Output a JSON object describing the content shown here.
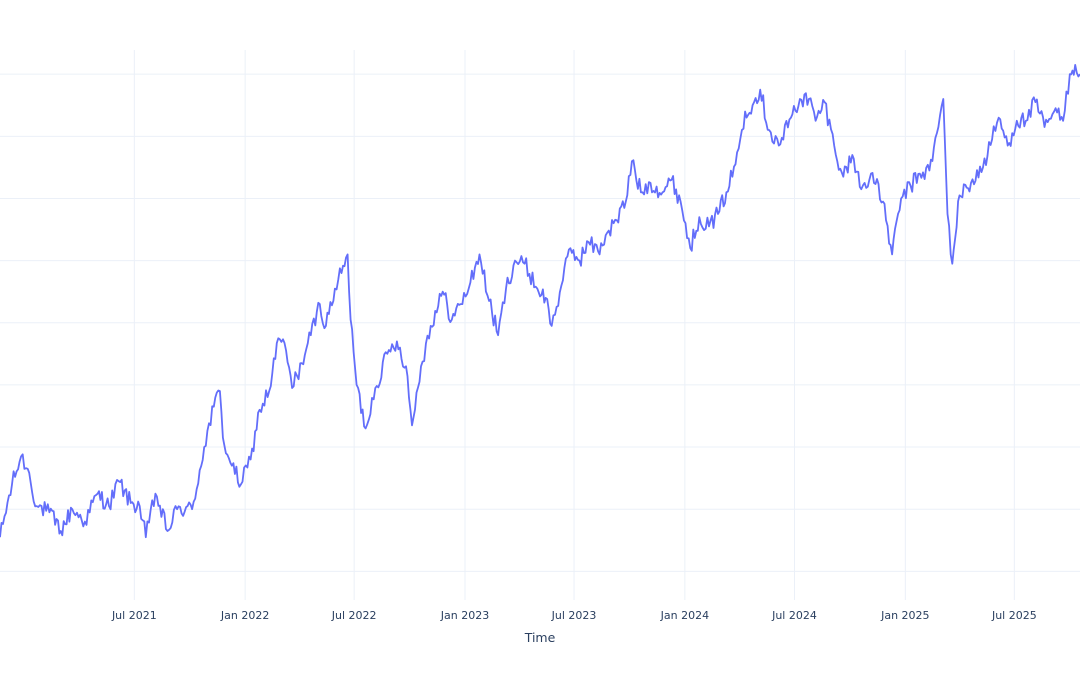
{
  "chart_data": {
    "type": "line",
    "title": "",
    "xlabel": "Time",
    "ylabel": "",
    "x_range": [
      "2020-11-20",
      "2025-10-18"
    ],
    "y_range": [
      -0.3,
      8.55
    ],
    "grid": true,
    "legend": "none",
    "x_ticks": [
      {
        "date": "2021-07-01",
        "label": "Jul 2021"
      },
      {
        "date": "2022-01-01",
        "label": "Jan 2022"
      },
      {
        "date": "2022-07-01",
        "label": "Jul 2022"
      },
      {
        "date": "2023-01-01",
        "label": "Jan 2023"
      },
      {
        "date": "2023-07-01",
        "label": "Jul 2023"
      },
      {
        "date": "2024-01-01",
        "label": "Jan 2024"
      },
      {
        "date": "2024-07-01",
        "label": "Jul 2024"
      },
      {
        "date": "2025-01-01",
        "label": "Jan 2025"
      },
      {
        "date": "2025-07-01",
        "label": "Jul 2025"
      }
    ],
    "y_gridlines": [
      0,
      1,
      2,
      3,
      4,
      5,
      6,
      7,
      8
    ],
    "series": [
      {
        "color": "#636efa",
        "points": [
          [
            "2020-11-20",
            0.55
          ],
          [
            "2020-12-10",
            1.4
          ],
          [
            "2020-12-25",
            1.85
          ],
          [
            "2021-01-05",
            1.65
          ],
          [
            "2021-01-20",
            1.05
          ],
          [
            "2021-02-10",
            0.95
          ],
          [
            "2021-03-01",
            0.65
          ],
          [
            "2021-03-20",
            1.0
          ],
          [
            "2021-04-10",
            0.8
          ],
          [
            "2021-05-01",
            1.25
          ],
          [
            "2021-05-20",
            1.05
          ],
          [
            "2021-06-05",
            1.45
          ],
          [
            "2021-06-25",
            1.1
          ],
          [
            "2021-07-10",
            1.05
          ],
          [
            "2021-07-20",
            0.55
          ],
          [
            "2021-08-05",
            1.25
          ],
          [
            "2021-08-25",
            0.65
          ],
          [
            "2021-09-10",
            1.0
          ],
          [
            "2021-10-05",
            1.0
          ],
          [
            "2021-10-25",
            2.0
          ],
          [
            "2021-11-10",
            2.65
          ],
          [
            "2021-11-20",
            2.9
          ],
          [
            "2021-11-25",
            2.15
          ],
          [
            "2021-12-10",
            1.7
          ],
          [
            "2021-12-25",
            1.4
          ],
          [
            "2022-01-10",
            1.8
          ],
          [
            "2022-01-25",
            2.6
          ],
          [
            "2022-02-10",
            2.9
          ],
          [
            "2022-02-25",
            3.75
          ],
          [
            "2022-03-10",
            3.55
          ],
          [
            "2022-03-20",
            2.95
          ],
          [
            "2022-04-05",
            3.35
          ],
          [
            "2022-04-20",
            3.8
          ],
          [
            "2022-05-05",
            4.3
          ],
          [
            "2022-05-15",
            3.95
          ],
          [
            "2022-05-30",
            4.55
          ],
          [
            "2022-06-10",
            4.8
          ],
          [
            "2022-06-20",
            5.1
          ],
          [
            "2022-06-25",
            4.05
          ],
          [
            "2022-07-05",
            3.0
          ],
          [
            "2022-07-20",
            2.3
          ],
          [
            "2022-08-05",
            2.95
          ],
          [
            "2022-08-25",
            3.5
          ],
          [
            "2022-09-10",
            3.7
          ],
          [
            "2022-09-25",
            3.3
          ],
          [
            "2022-10-05",
            2.35
          ],
          [
            "2022-10-20",
            3.3
          ],
          [
            "2022-11-05",
            3.95
          ],
          [
            "2022-11-25",
            4.5
          ],
          [
            "2022-12-10",
            4.05
          ],
          [
            "2022-12-25",
            4.3
          ],
          [
            "2023-01-10",
            4.65
          ],
          [
            "2023-01-25",
            5.1
          ],
          [
            "2023-02-10",
            4.35
          ],
          [
            "2023-02-25",
            3.8
          ],
          [
            "2023-03-10",
            4.55
          ],
          [
            "2023-03-25",
            5.0
          ],
          [
            "2023-04-10",
            4.95
          ],
          [
            "2023-05-01",
            4.55
          ],
          [
            "2023-05-15",
            4.4
          ],
          [
            "2023-05-25",
            3.95
          ],
          [
            "2023-06-10",
            4.6
          ],
          [
            "2023-06-25",
            5.2
          ],
          [
            "2023-07-10",
            5.0
          ],
          [
            "2023-07-25",
            5.3
          ],
          [
            "2023-08-10",
            5.15
          ],
          [
            "2023-08-25",
            5.45
          ],
          [
            "2023-09-10",
            5.65
          ],
          [
            "2023-09-25",
            5.95
          ],
          [
            "2023-10-05",
            6.6
          ],
          [
            "2023-10-20",
            6.1
          ],
          [
            "2023-11-05",
            6.25
          ],
          [
            "2023-11-25",
            6.1
          ],
          [
            "2023-12-10",
            6.3
          ],
          [
            "2023-12-25",
            5.95
          ],
          [
            "2024-01-10",
            5.2
          ],
          [
            "2024-01-25",
            5.7
          ],
          [
            "2024-02-10",
            5.55
          ],
          [
            "2024-02-25",
            5.75
          ],
          [
            "2024-03-10",
            6.1
          ],
          [
            "2024-03-25",
            6.55
          ],
          [
            "2024-04-10",
            7.4
          ],
          [
            "2024-04-25",
            7.55
          ],
          [
            "2024-05-05",
            7.75
          ],
          [
            "2024-05-20",
            7.1
          ],
          [
            "2024-06-05",
            6.85
          ],
          [
            "2024-06-25",
            7.3
          ],
          [
            "2024-07-10",
            7.6
          ],
          [
            "2024-07-25",
            7.6
          ],
          [
            "2024-08-05",
            7.25
          ],
          [
            "2024-08-20",
            7.55
          ],
          [
            "2024-09-05",
            6.85
          ],
          [
            "2024-09-20",
            6.35
          ],
          [
            "2024-10-05",
            6.7
          ],
          [
            "2024-10-20",
            6.15
          ],
          [
            "2024-11-05",
            6.4
          ],
          [
            "2024-11-25",
            5.95
          ],
          [
            "2024-12-10",
            5.1
          ],
          [
            "2024-12-25",
            6.0
          ],
          [
            "2025-01-10",
            6.2
          ],
          [
            "2025-01-25",
            6.4
          ],
          [
            "2025-02-10",
            6.45
          ],
          [
            "2025-02-25",
            7.15
          ],
          [
            "2025-03-05",
            7.6
          ],
          [
            "2025-03-12",
            5.75
          ],
          [
            "2025-03-20",
            4.95
          ],
          [
            "2025-04-01",
            6.05
          ],
          [
            "2025-04-20",
            6.25
          ],
          [
            "2025-05-10",
            6.5
          ],
          [
            "2025-05-25",
            6.95
          ],
          [
            "2025-06-05",
            7.3
          ],
          [
            "2025-06-20",
            6.85
          ],
          [
            "2025-07-05",
            7.25
          ],
          [
            "2025-07-20",
            7.25
          ],
          [
            "2025-08-05",
            7.55
          ],
          [
            "2025-08-20",
            7.15
          ],
          [
            "2025-09-05",
            7.4
          ],
          [
            "2025-09-20",
            7.25
          ],
          [
            "2025-10-01",
            8.0
          ],
          [
            "2025-10-10",
            8.15
          ],
          [
            "2025-10-18",
            8.0
          ]
        ]
      }
    ]
  }
}
